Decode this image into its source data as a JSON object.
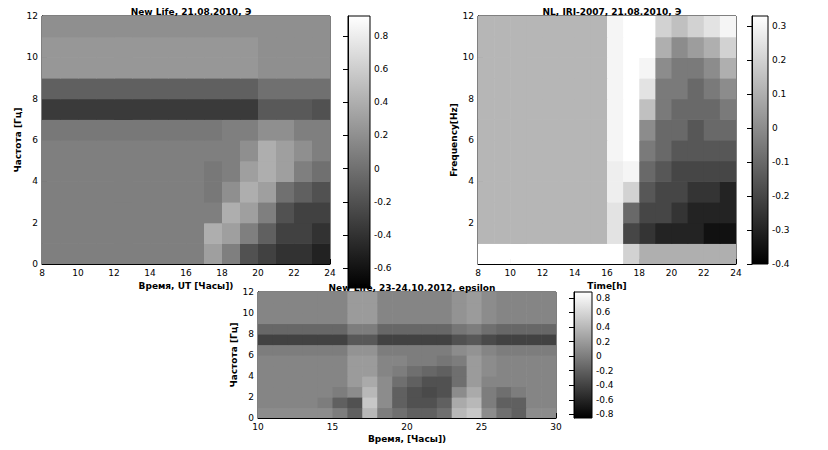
{
  "chart_data": [
    {
      "type": "heatmap",
      "title": "New Life, 21.08.2010, Э",
      "x_label": "Время, UT [Часы])",
      "y_label": "Частота [Гц]",
      "xlim": [
        8,
        24
      ],
      "xticks": [
        8,
        10,
        12,
        14,
        16,
        18,
        20,
        22,
        24
      ],
      "ylim": [
        0,
        12
      ],
      "yticks": [
        0,
        2,
        4,
        6,
        8,
        10,
        12
      ],
      "color": "gray",
      "x_bins": [
        8,
        9,
        10,
        11,
        12,
        13,
        14,
        15,
        16,
        17,
        18,
        19,
        20,
        21,
        22,
        23,
        24
      ],
      "y_bins": [
        0,
        1,
        2,
        3,
        4,
        5,
        6,
        7,
        8,
        9,
        10,
        11,
        12
      ],
      "cells": [
        [
          0.1,
          0.1,
          0.1,
          0.1,
          0.1,
          0.1,
          0.1,
          0.1,
          0.1,
          0.3,
          0.1,
          -0.2,
          -0.3,
          -0.4,
          -0.4,
          -0.5
        ],
        [
          0.1,
          0.1,
          0.1,
          0.1,
          0.1,
          0.1,
          0.1,
          0.1,
          0.1,
          0.4,
          0.3,
          0.1,
          -0.1,
          -0.3,
          -0.3,
          -0.4
        ],
        [
          0.1,
          0.1,
          0.1,
          0.1,
          0.1,
          0.1,
          0.1,
          0.1,
          0.1,
          0.1,
          0.4,
          0.3,
          0.1,
          -0.2,
          -0.3,
          -0.3
        ],
        [
          0.1,
          0.1,
          0.1,
          0.1,
          0.1,
          0.1,
          0.1,
          0.1,
          0.1,
          0.05,
          0.2,
          0.4,
          0.3,
          0,
          -0.1,
          -0.2
        ],
        [
          0.1,
          0.1,
          0.1,
          0.1,
          0.1,
          0.1,
          0.1,
          0.1,
          0.1,
          0.05,
          0.1,
          0.3,
          0.4,
          0.3,
          0.1,
          0
        ],
        [
          0.1,
          0.1,
          0.1,
          0.1,
          0.1,
          0.1,
          0.1,
          0.1,
          0.1,
          0.1,
          0.1,
          0.2,
          0.4,
          0.3,
          0.2,
          0.1
        ],
        [
          0.05,
          0.05,
          0.05,
          0.05,
          0.05,
          0.05,
          0.05,
          0.05,
          0.05,
          0.05,
          0.1,
          0.1,
          0.2,
          0.2,
          0.1,
          0.1
        ],
        [
          -0.35,
          -0.35,
          -0.35,
          -0.35,
          -0.35,
          -0.35,
          -0.35,
          -0.35,
          -0.35,
          -0.35,
          -0.35,
          -0.35,
          -0.15,
          -0.15,
          -0.15,
          -0.2
        ],
        [
          -0.1,
          -0.1,
          -0.1,
          -0.1,
          -0.1,
          -0.1,
          -0.1,
          -0.1,
          -0.1,
          -0.1,
          -0.1,
          -0.1,
          0,
          0,
          0,
          0
        ],
        [
          0.25,
          0.25,
          0.25,
          0.25,
          0.25,
          0.25,
          0.25,
          0.25,
          0.25,
          0.25,
          0.25,
          0.25,
          0.2,
          0.2,
          0.2,
          0.2
        ],
        [
          0.25,
          0.25,
          0.25,
          0.25,
          0.25,
          0.25,
          0.25,
          0.25,
          0.25,
          0.25,
          0.25,
          0.25,
          0.2,
          0.2,
          0.2,
          0.2
        ],
        [
          0.2,
          0.2,
          0.2,
          0.2,
          0.2,
          0.2,
          0.2,
          0.2,
          0.2,
          0.2,
          0.2,
          0.2,
          0.2,
          0.2,
          0.2,
          0.2
        ]
      ],
      "colorbar": {
        "range": [
          -0.72,
          0.92
        ],
        "ticks": [
          -0.6,
          -0.4,
          -0.2,
          0,
          0.2,
          0.4,
          0.6,
          0.8
        ]
      }
    },
    {
      "type": "heatmap",
      "title": "NL, IRI-2007, 21.08.2010, Э",
      "x_label": "Time[h]",
      "y_label": "Frequency[Hz]",
      "xlim": [
        8,
        24
      ],
      "xticks": [
        8,
        10,
        12,
        14,
        16,
        18,
        20,
        22,
        24
      ],
      "ylim": [
        0,
        12
      ],
      "yticks": [
        2,
        4,
        6,
        8,
        10,
        12
      ],
      "color": "gray",
      "x_bins": [
        8,
        9,
        10,
        11,
        12,
        13,
        14,
        15,
        16,
        17,
        18,
        19,
        20,
        21,
        22,
        23,
        24
      ],
      "y_bins": [
        0,
        1,
        2,
        3,
        4,
        5,
        6,
        7,
        8,
        9,
        10,
        11,
        12
      ],
      "cells": [
        [
          0.33,
          0.33,
          0.33,
          0.33,
          0.33,
          0.33,
          0.33,
          0.33,
          0.33,
          0.2,
          0.1,
          0.1,
          0.1,
          0.1,
          0.1,
          0.1
        ],
        [
          0.12,
          0.12,
          0.12,
          0.12,
          0.12,
          0.12,
          0.12,
          0.12,
          0.25,
          -0.2,
          -0.25,
          -0.3,
          -0.3,
          -0.3,
          -0.35,
          -0.35
        ],
        [
          0.12,
          0.12,
          0.12,
          0.12,
          0.12,
          0.12,
          0.12,
          0.12,
          0.25,
          -0.1,
          -0.2,
          -0.2,
          -0.25,
          -0.3,
          -0.3,
          -0.3
        ],
        [
          0.12,
          0.12,
          0.12,
          0.12,
          0.12,
          0.12,
          0.12,
          0.12,
          0.28,
          0.2,
          -0.15,
          -0.2,
          -0.2,
          -0.25,
          -0.25,
          -0.3
        ],
        [
          0.12,
          0.12,
          0.12,
          0.12,
          0.12,
          0.12,
          0.12,
          0.12,
          0.28,
          0.3,
          -0.1,
          -0.15,
          -0.2,
          -0.2,
          -0.2,
          -0.2
        ],
        [
          0.12,
          0.12,
          0.12,
          0.12,
          0.12,
          0.12,
          0.12,
          0.12,
          0.3,
          0.33,
          -0.05,
          -0.1,
          -0.15,
          -0.15,
          -0.15,
          -0.15
        ],
        [
          0.12,
          0.12,
          0.12,
          0.12,
          0.12,
          0.12,
          0.12,
          0.12,
          0.3,
          0.33,
          0,
          -0.1,
          -0.1,
          -0.15,
          -0.1,
          -0.1
        ],
        [
          0.12,
          0.12,
          0.12,
          0.12,
          0.12,
          0.12,
          0.12,
          0.12,
          0.3,
          0.33,
          0.15,
          -0.05,
          -0.1,
          -0.1,
          -0.1,
          -0.05
        ],
        [
          0.12,
          0.12,
          0.12,
          0.12,
          0.12,
          0.12,
          0.12,
          0.12,
          0.3,
          0.33,
          0.25,
          -0.05,
          -0.05,
          -0.1,
          -0.05,
          0
        ],
        [
          0.12,
          0.12,
          0.12,
          0.12,
          0.12,
          0.12,
          0.12,
          0.12,
          0.3,
          0.33,
          0.3,
          0,
          -0.05,
          -0.05,
          0,
          0.1
        ],
        [
          0.12,
          0.12,
          0.12,
          0.12,
          0.12,
          0.12,
          0.12,
          0.12,
          0.3,
          0.33,
          0.33,
          0.1,
          0,
          0.05,
          0.1,
          0.2
        ],
        [
          0.12,
          0.12,
          0.12,
          0.12,
          0.12,
          0.12,
          0.12,
          0.12,
          0.3,
          0.33,
          0.33,
          0.2,
          0.15,
          0.2,
          0.25,
          0.3
        ]
      ],
      "colorbar": {
        "range": [
          -0.4,
          0.33
        ],
        "ticks": [
          -0.4,
          -0.3,
          -0.2,
          -0.1,
          0,
          0.1,
          0.2,
          0.3
        ]
      }
    },
    {
      "type": "heatmap",
      "title": "New Life, 23-24.10.2012, epsilon",
      "x_label": "Время, [Часы])",
      "y_label": "Частота [Гц]",
      "xlim": [
        10,
        30
      ],
      "xticks": [
        10,
        15,
        20,
        25,
        30
      ],
      "ylim": [
        0,
        12
      ],
      "yticks": [
        0,
        2,
        4,
        6,
        8,
        10,
        12
      ],
      "color": "gray",
      "x_bins": [
        10,
        11,
        12,
        13,
        14,
        15,
        16,
        17,
        18,
        19,
        20,
        21,
        22,
        23,
        24,
        25,
        26,
        27,
        28,
        29,
        30
      ],
      "y_bins": [
        0,
        1,
        2,
        3,
        4,
        5,
        6,
        7,
        8,
        9,
        10,
        11,
        12
      ],
      "cells": [
        [
          0.1,
          0.1,
          0.1,
          0.1,
          0.1,
          0,
          -0.2,
          0.4,
          0,
          -0.1,
          -0.2,
          -0.2,
          -0.1,
          0.4,
          0.5,
          0.1,
          -0.1,
          -0.2,
          0.1,
          0.1
        ],
        [
          0.05,
          0.05,
          0.05,
          0.05,
          0,
          -0.2,
          -0.3,
          0.5,
          0.1,
          -0.2,
          -0.3,
          -0.3,
          -0.2,
          0.3,
          0.4,
          0,
          -0.2,
          -0.2,
          0.05,
          0.05
        ],
        [
          0.05,
          0.05,
          0.05,
          0.05,
          0.05,
          0,
          0.1,
          0.4,
          0.1,
          -0.2,
          -0.3,
          -0.35,
          -0.3,
          0.1,
          0.3,
          0,
          -0.1,
          0,
          0.05,
          0.05
        ],
        [
          0.05,
          0.05,
          0.05,
          0.05,
          0.05,
          0.05,
          0.2,
          0.3,
          0.1,
          -0.1,
          -0.2,
          -0.3,
          -0.3,
          -0.1,
          0.2,
          0.05,
          0.05,
          0.05,
          0.05,
          0.05
        ],
        [
          0.05,
          0.05,
          0.05,
          0.05,
          0.05,
          0.05,
          0.2,
          0.2,
          0.05,
          0,
          -0.1,
          -0.15,
          -0.2,
          -0.1,
          0.2,
          0.1,
          0.05,
          0.05,
          0.05,
          0.05
        ],
        [
          0.05,
          0.05,
          0.05,
          0.05,
          0.05,
          0.05,
          0.2,
          0.2,
          0.05,
          0.05,
          0,
          0,
          -0.05,
          0,
          0.2,
          0.1,
          0.05,
          0.05,
          0.05,
          0.05
        ],
        [
          0,
          0,
          0,
          0,
          0,
          0,
          0.15,
          0.15,
          0,
          0,
          0,
          0,
          0,
          0.1,
          0.15,
          0.05,
          0,
          0,
          0,
          0
        ],
        [
          -0.4,
          -0.4,
          -0.4,
          -0.4,
          -0.4,
          -0.4,
          -0.25,
          -0.25,
          -0.4,
          -0.4,
          -0.4,
          -0.4,
          -0.4,
          -0.3,
          -0.25,
          -0.35,
          -0.4,
          -0.4,
          -0.4,
          -0.4
        ],
        [
          -0.15,
          -0.15,
          -0.15,
          -0.15,
          -0.15,
          -0.15,
          0,
          0,
          -0.15,
          -0.15,
          -0.15,
          -0.15,
          -0.15,
          -0.05,
          0,
          -0.1,
          -0.15,
          -0.15,
          -0.15,
          -0.15
        ],
        [
          0.05,
          0.05,
          0.05,
          0.05,
          0.05,
          0.05,
          0.2,
          0.2,
          0.05,
          0.05,
          0.05,
          0.05,
          0.05,
          0.15,
          0.2,
          0.1,
          0.05,
          0.05,
          0.05,
          0.05
        ],
        [
          0.05,
          0.05,
          0.05,
          0.05,
          0.05,
          0.05,
          0.2,
          0.2,
          0.05,
          0.05,
          0.05,
          0.05,
          0.05,
          0.15,
          0.2,
          0.1,
          0.05,
          0.05,
          0.05,
          0.05
        ],
        [
          0.05,
          0.05,
          0.05,
          0.05,
          0.05,
          0.05,
          0.2,
          0.2,
          0.05,
          0.05,
          0.05,
          0.05,
          0.05,
          0.15,
          0.2,
          0.1,
          0.05,
          0.05,
          0.05,
          0.05
        ]
      ],
      "colorbar": {
        "range": [
          -0.85,
          0.88
        ],
        "ticks": [
          -0.8,
          -0.6,
          -0.4,
          -0.2,
          0,
          0.2,
          0.4,
          0.6,
          0.8
        ]
      }
    }
  ]
}
